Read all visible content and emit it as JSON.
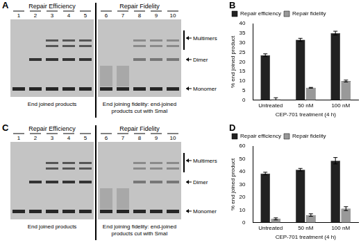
{
  "gels": [
    {
      "label": "A",
      "section_titles": [
        "Repair Efficiency",
        "Repair Fidelity"
      ],
      "lanes": [
        "1",
        "2",
        "3",
        "4",
        "5",
        "6",
        "7",
        "8",
        "9",
        "10"
      ],
      "band_labels": [
        "Multimers",
        "Dimer",
        "Monomer"
      ],
      "captions": [
        "End joined products",
        "End joining fidelity: end-joined products cut with SmaI"
      ]
    },
    {
      "label": "C",
      "section_titles": [
        "Repair Efficiency",
        "Repair Fidelity"
      ],
      "lanes": [
        "1",
        "2",
        "3",
        "4",
        "5",
        "6",
        "7",
        "8",
        "9",
        "10"
      ],
      "band_labels": [
        "Multimers",
        "Dimer",
        "Monomer"
      ],
      "captions": [
        "End joined products",
        "End joining fidelity: end-joined products cut with SmaI"
      ]
    }
  ],
  "chart_data": [
    {
      "label": "B",
      "type": "bar",
      "categories": [
        "Untreated",
        "50 nM",
        "100 nM"
      ],
      "x_label": "CEP-701 treatment (4 h)",
      "y_label": "% end joined product",
      "ylim": [
        0,
        40
      ],
      "yticks": [
        0,
        5,
        10,
        15,
        20,
        25,
        30,
        35,
        40
      ],
      "grid": false,
      "legend": "top-left",
      "series": [
        {
          "name": "Repair efficiency",
          "color": "#222222",
          "values": [
            23.5,
            31.5,
            35
          ],
          "errors": [
            0.7,
            0.8,
            1
          ]
        },
        {
          "name": "Repair fidelity",
          "color": "#999999",
          "values": [
            0.5,
            6.5,
            10
          ],
          "errors": [
            0.8,
            0.2,
            0.5
          ]
        }
      ]
    },
    {
      "label": "D",
      "type": "bar",
      "categories": [
        "Untreated",
        "50 nM",
        "100 nM"
      ],
      "x_label": "CEP-701 treatment (4 h)",
      "y_label": "% end joined product",
      "ylim": [
        0,
        60
      ],
      "yticks": [
        0,
        10,
        20,
        30,
        40,
        50,
        60
      ],
      "grid": false,
      "legend": "top-left",
      "series": [
        {
          "name": "Repair efficiency",
          "color": "#222222",
          "values": [
            38.5,
            41.5,
            48.5
          ],
          "errors": [
            1,
            1,
            2.5
          ]
        },
        {
          "name": "Repair fidelity",
          "color": "#999999",
          "values": [
            3,
            6,
            11
          ],
          "errors": [
            0.8,
            1,
            1.5
          ]
        }
      ]
    }
  ]
}
